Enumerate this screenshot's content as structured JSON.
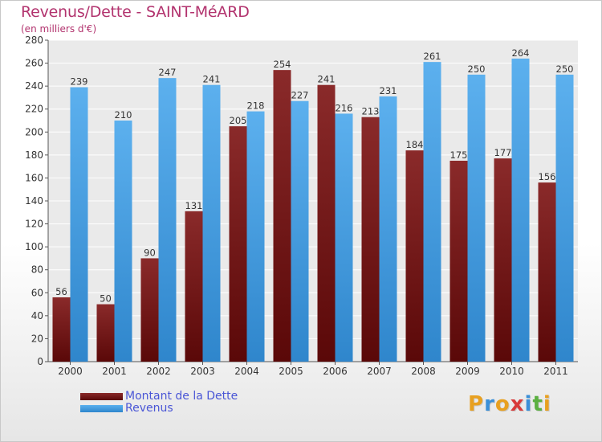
{
  "header": {
    "title": "Revenus/Dette - SAINT-MéARD",
    "subtitle": "(en milliers d'€)"
  },
  "legend": {
    "items": [
      {
        "label": "Montant de la Dette",
        "color": "#6b1010"
      },
      {
        "label": "Revenus",
        "color": "#4a9de0"
      }
    ]
  },
  "logo": {
    "text": "Proxiti",
    "letters": [
      {
        "ch": "P",
        "color": "#e8a020"
      },
      {
        "ch": "r",
        "color": "#3a8fd8"
      },
      {
        "ch": "o",
        "color": "#e8a020"
      },
      {
        "ch": "x",
        "color": "#d83a3a"
      },
      {
        "ch": "i",
        "color": "#3a8fd8"
      },
      {
        "ch": "t",
        "color": "#5bb040"
      },
      {
        "ch": "i",
        "color": "#e8a020"
      }
    ]
  },
  "chart_data": {
    "type": "bar",
    "title": "Revenus/Dette - SAINT-MéARD",
    "subtitle": "(en milliers d'€)",
    "xlabel": "",
    "ylabel": "",
    "categories": [
      "2000",
      "2001",
      "2002",
      "2003",
      "2004",
      "2005",
      "2006",
      "2007",
      "2008",
      "2009",
      "2010",
      "2011"
    ],
    "series": [
      {
        "name": "Montant de la Dette",
        "color": "#7a1f1f",
        "values": [
          56,
          50,
          90,
          131,
          205,
          254,
          241,
          213,
          184,
          175,
          177,
          156
        ]
      },
      {
        "name": "Revenus",
        "color": "#4da3e3",
        "values": [
          239,
          210,
          247,
          241,
          218,
          227,
          216,
          231,
          261,
          250,
          264,
          250
        ]
      }
    ],
    "ylim": [
      0,
      280
    ],
    "yticks": [
      0,
      20,
      40,
      60,
      80,
      100,
      120,
      140,
      160,
      180,
      200,
      220,
      240,
      260,
      280
    ],
    "grid": true,
    "legend_position": "bottom-left"
  }
}
